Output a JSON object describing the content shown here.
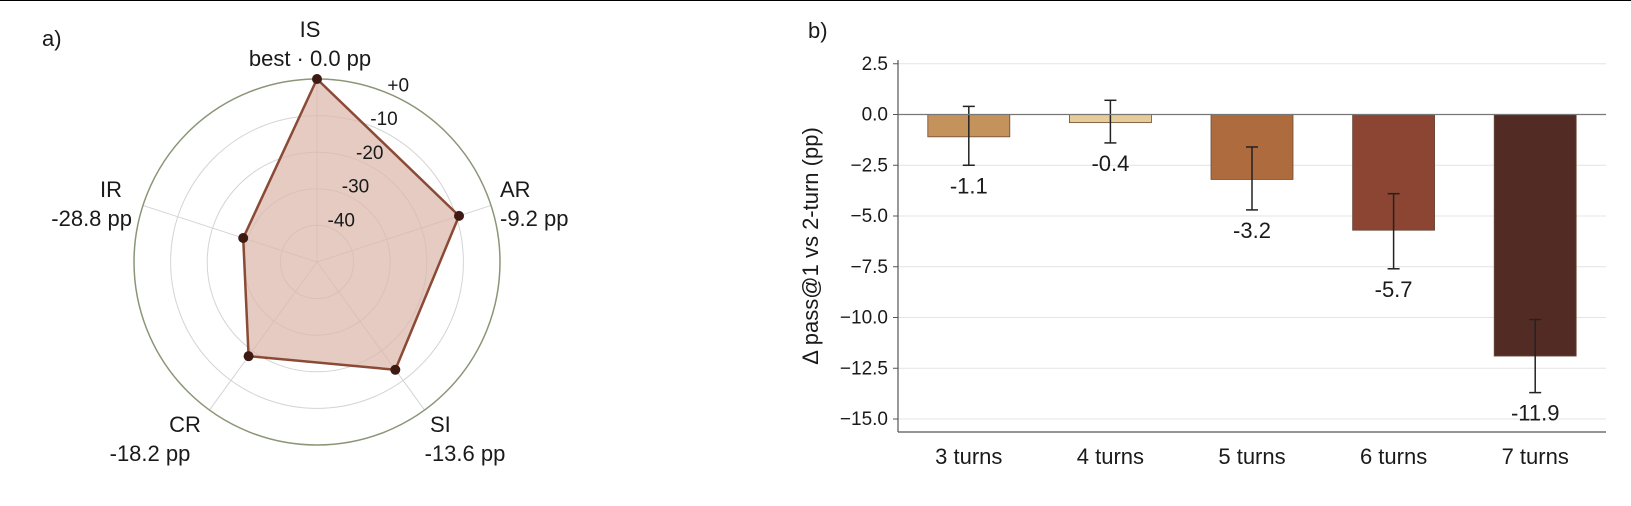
{
  "panels": {
    "a": "a)",
    "b": "b)"
  },
  "chart_data": [
    {
      "type": "radar",
      "axes": [
        {
          "name": "IS",
          "value_label": "best · 0.0 pp",
          "value": 0.0
        },
        {
          "name": "AR",
          "value_label": "-9.2 pp",
          "value": -9.2
        },
        {
          "name": "SI",
          "value_label": "-13.6 pp",
          "value": -13.6
        },
        {
          "name": "CR",
          "value_label": "-18.2 pp",
          "value": -18.2
        },
        {
          "name": "IR",
          "value_label": "-28.8 pp",
          "value": -28.8
        }
      ],
      "ring_ticks": [
        {
          "value": 0,
          "label": "+0"
        },
        {
          "value": -10,
          "label": "-10"
        },
        {
          "value": -20,
          "label": "-20"
        },
        {
          "value": -30,
          "label": "-30"
        },
        {
          "value": -40,
          "label": "-40"
        }
      ],
      "rlim": [
        -50,
        0
      ],
      "colors": {
        "line": "#8a4a36",
        "fill": "#dcb9ad",
        "marker": "#3d1a14",
        "outer_ring": "#8a9676",
        "grid": "#d4d4d4"
      }
    },
    {
      "type": "bar",
      "ylabel": "Δ pass@1 vs 2-turn (pp)",
      "ylim": [
        -15.6,
        2.6
      ],
      "yticks": [
        {
          "value": 2.5,
          "label": "2.5"
        },
        {
          "value": 0.0,
          "label": "0.0"
        },
        {
          "value": -2.5,
          "label": "−2.5"
        },
        {
          "value": -5.0,
          "label": "−5.0"
        },
        {
          "value": -7.5,
          "label": "−7.5"
        },
        {
          "value": -10.0,
          "label": "−10.0"
        },
        {
          "value": -12.5,
          "label": "−12.5"
        },
        {
          "value": -15.0,
          "label": "−15.0"
        }
      ],
      "categories": [
        "3 turns",
        "4 turns",
        "5 turns",
        "6 turns",
        "7 turns"
      ],
      "values": [
        -1.1,
        -0.4,
        -3.2,
        -5.7,
        -11.9
      ],
      "value_labels": [
        "-1.1",
        "-0.4",
        "-3.2",
        "-5.7",
        "-11.9"
      ],
      "error_low": [
        -2.5,
        -1.4,
        -4.7,
        -7.6,
        -13.7
      ],
      "error_high": [
        0.4,
        0.7,
        -1.6,
        -3.9,
        -10.1
      ],
      "colors": [
        "#c4935c",
        "#e6cc96",
        "#ad6b3e",
        "#8b4532",
        "#522b25"
      ],
      "grid": true
    }
  ]
}
